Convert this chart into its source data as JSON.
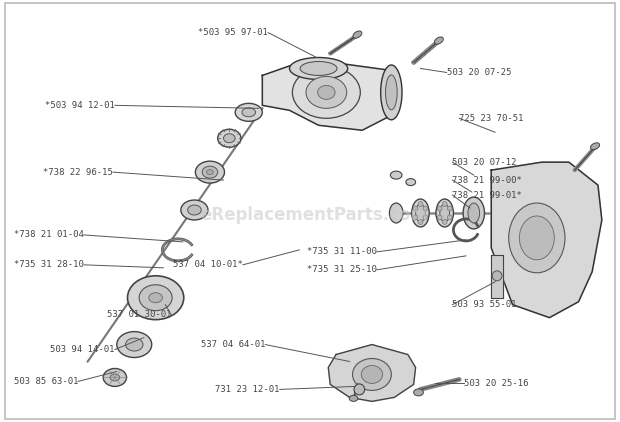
{
  "background_color": "#ffffff",
  "border_color": "#bbbbbb",
  "text_color": "#444444",
  "line_color": "#555555",
  "watermark": "eReplacementParts.com",
  "watermark_color": "#c8c8c8",
  "watermark_alpha": 0.55,
  "labels_data": [
    [
      "*503 95 97-01",
      258,
      32,
      308,
      57,
      "right"
    ],
    [
      "503 20 07-25",
      442,
      72,
      415,
      68,
      "left"
    ],
    [
      "*503 94 12-01",
      100,
      105,
      248,
      108,
      "right"
    ],
    [
      "725 23 70-51",
      455,
      118,
      492,
      132,
      "left"
    ],
    [
      "503 20 07-12",
      448,
      162,
      470,
      175,
      "left"
    ],
    [
      "*738 22 96-15",
      98,
      172,
      212,
      180,
      "right"
    ],
    [
      "738 21 99-00*",
      448,
      180,
      468,
      192,
      "left"
    ],
    [
      "738 21 99-01*",
      448,
      195,
      466,
      208,
      "left"
    ],
    [
      "*738 21 01-04",
      68,
      235,
      170,
      242,
      "right"
    ],
    [
      "537 04 10-01*",
      232,
      265,
      290,
      250,
      "right"
    ],
    [
      "*735 31 11-00",
      370,
      252,
      462,
      240,
      "right"
    ],
    [
      "*735 31 28-10",
      68,
      265,
      150,
      268,
      "right"
    ],
    [
      "*735 31 25-10",
      370,
      270,
      462,
      256,
      "right"
    ],
    [
      "537 01 30-01",
      158,
      315,
      152,
      305,
      "right"
    ],
    [
      "503 93 55-01",
      448,
      305,
      492,
      282,
      "left"
    ],
    [
      "503 94 14-01",
      100,
      350,
      130,
      338,
      "right"
    ],
    [
      "537 04 64-01",
      255,
      345,
      342,
      362,
      "right"
    ],
    [
      "503 85 63-01",
      62,
      382,
      102,
      372,
      "right"
    ],
    [
      "731 23 12-01",
      270,
      390,
      348,
      387,
      "right"
    ],
    [
      "503 20 25-16",
      460,
      384,
      430,
      384,
      "left"
    ]
  ]
}
